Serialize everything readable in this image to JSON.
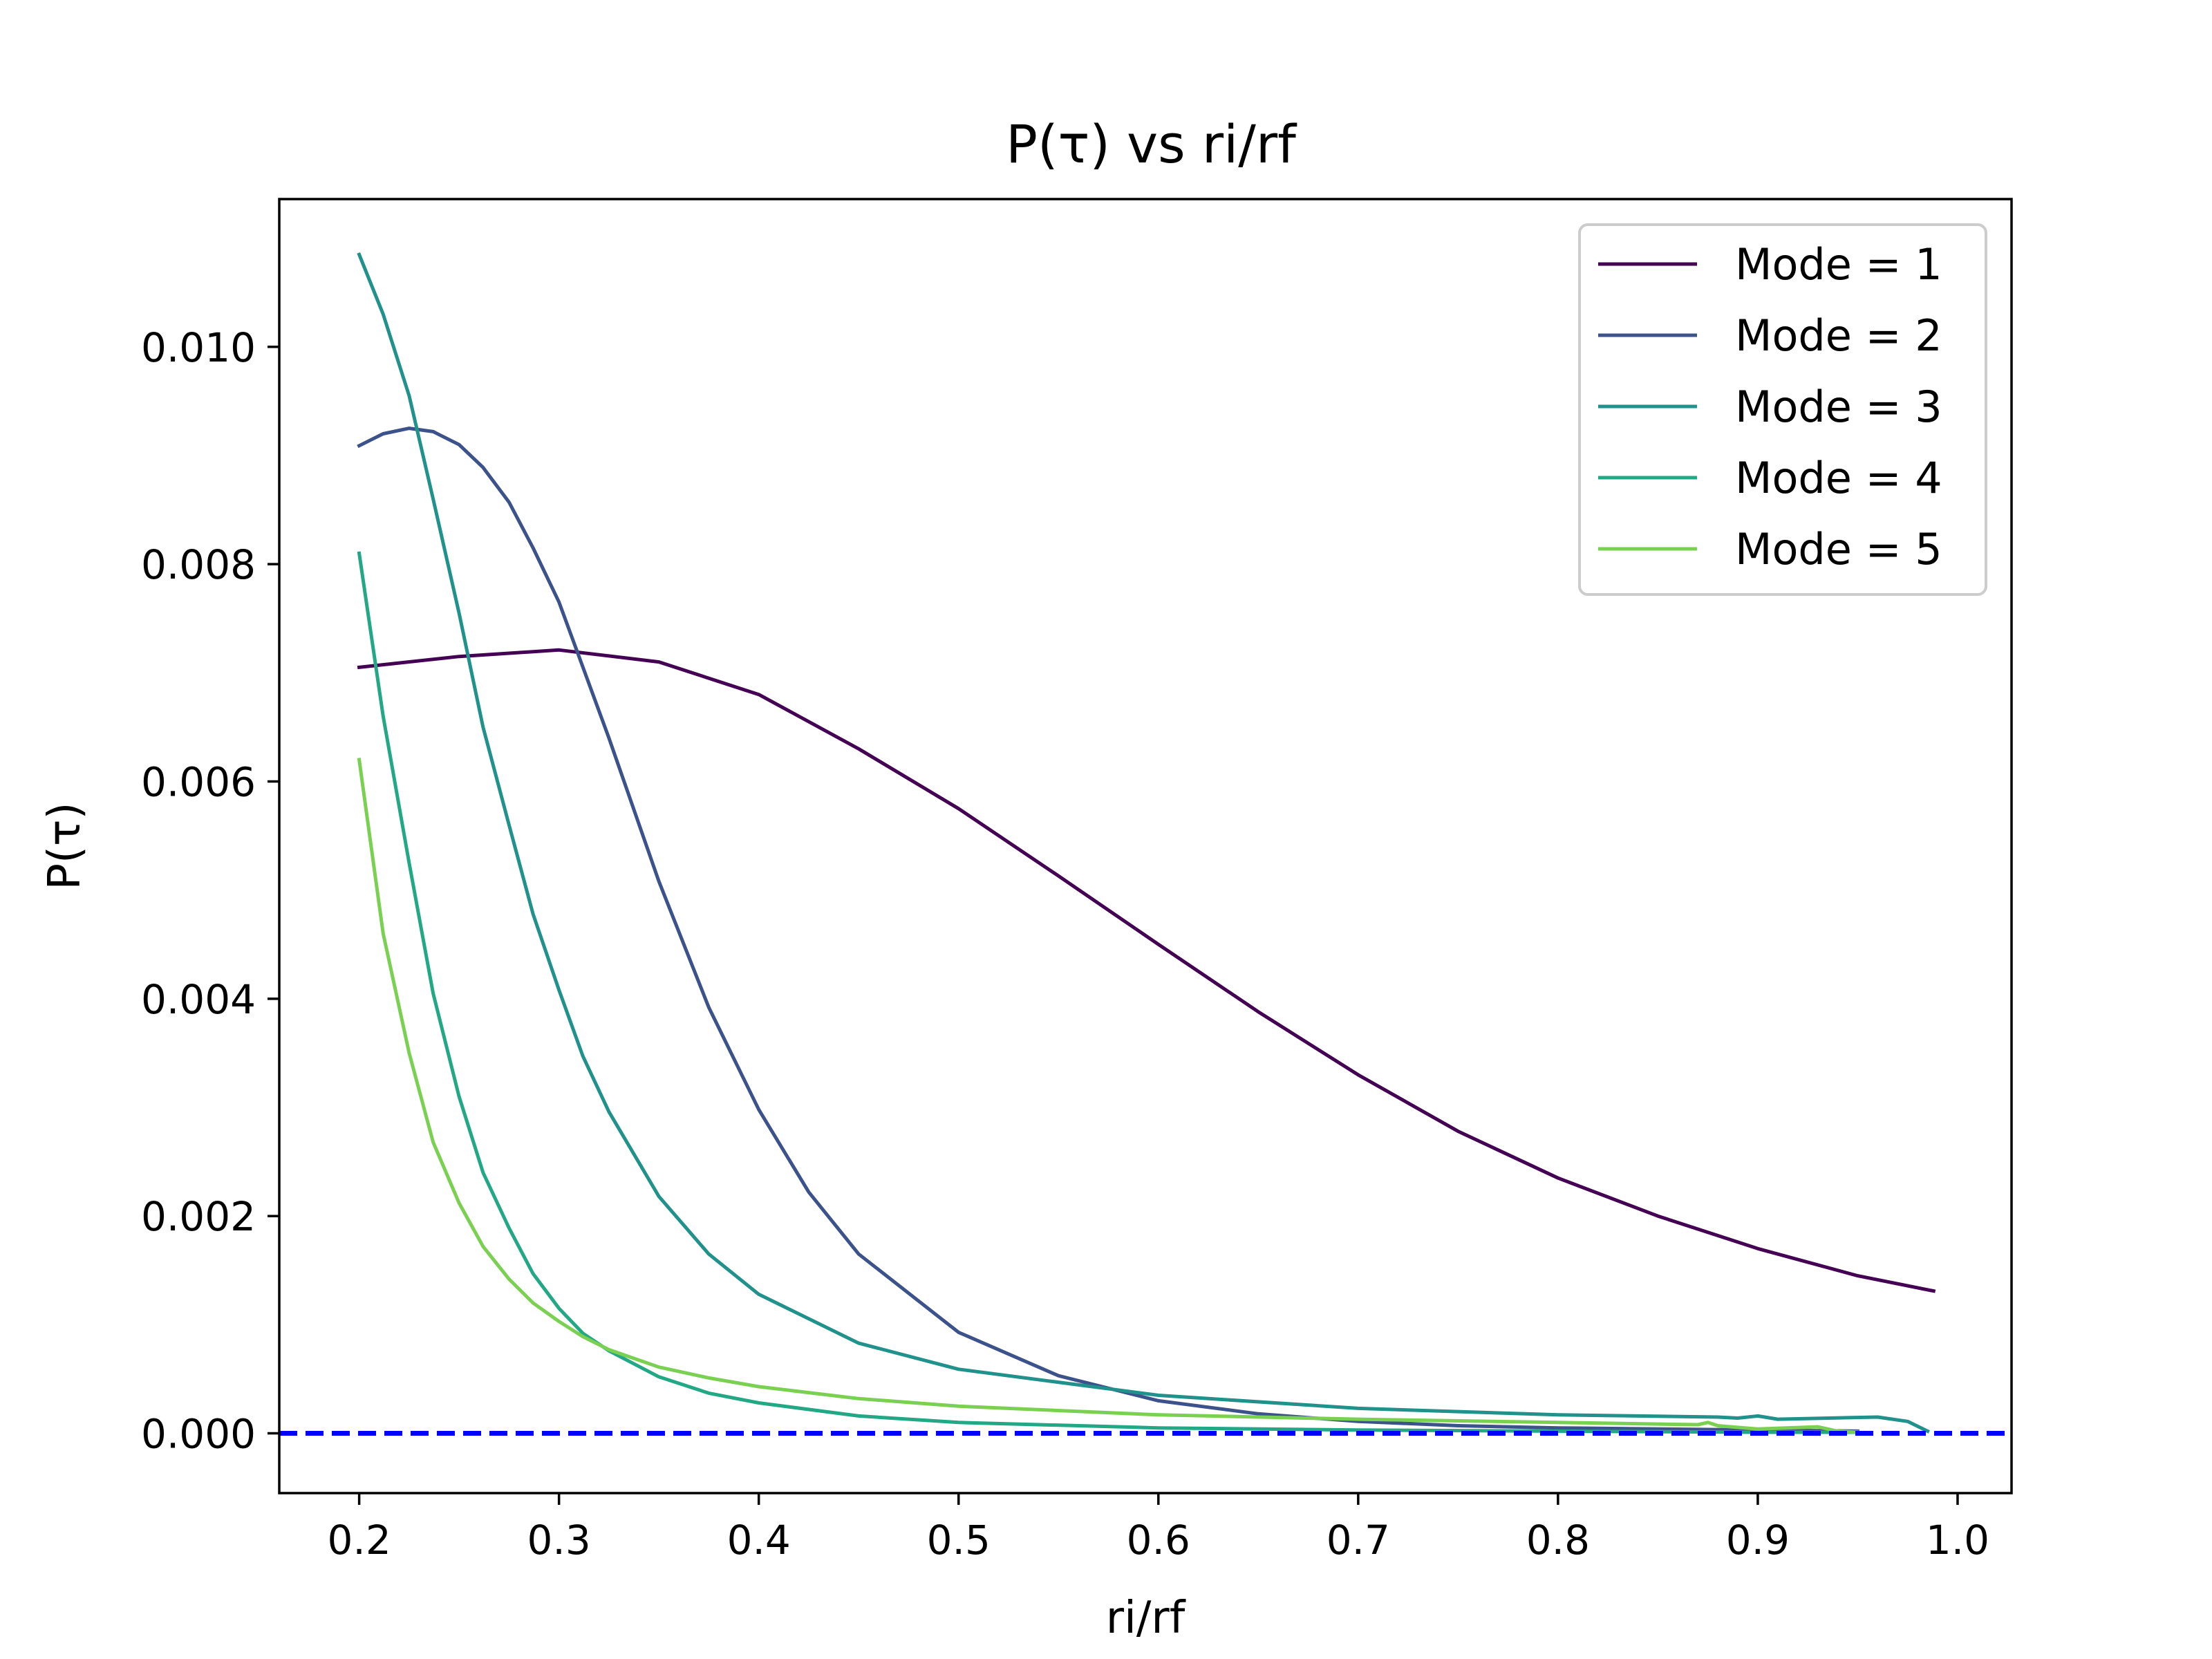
{
  "chart_data": {
    "type": "line",
    "title": "P(τ) vs ri/rf",
    "xlabel": "ri/rf",
    "ylabel": "P(τ)",
    "xlim": [
      0.16,
      1.027
    ],
    "ylim": [
      -0.00055,
      0.01136
    ],
    "xticks": [
      0.2,
      0.3,
      0.4,
      0.5,
      0.6,
      0.7,
      0.8,
      0.9,
      1.0
    ],
    "xtick_labels": [
      "0.2",
      "0.3",
      "0.4",
      "0.5",
      "0.6",
      "0.7",
      "0.8",
      "0.9",
      "1.0"
    ],
    "yticks": [
      0.0,
      0.002,
      0.004,
      0.006,
      0.008,
      0.01
    ],
    "ytick_labels": [
      "0.000",
      "0.002",
      "0.004",
      "0.006",
      "0.008",
      "0.010"
    ],
    "grid": false,
    "legend_position": "top-right",
    "reference_line": {
      "y": 0.0,
      "style": "dashed",
      "color": "#0000ff"
    },
    "series": [
      {
        "name": "Mode = 1",
        "color": "#440154",
        "x": [
          0.2,
          0.25,
          0.3,
          0.35,
          0.4,
          0.45,
          0.5,
          0.55,
          0.6,
          0.65,
          0.7,
          0.75,
          0.8,
          0.85,
          0.9,
          0.95,
          0.988
        ],
        "y": [
          0.00705,
          0.00715,
          0.00721,
          0.0071,
          0.0068,
          0.0063,
          0.00575,
          0.00513,
          0.0045,
          0.00388,
          0.0033,
          0.00278,
          0.00235,
          0.002,
          0.0017,
          0.00145,
          0.00131
        ]
      },
      {
        "name": "Mode = 2",
        "color": "#3b528b",
        "x": [
          0.2,
          0.212,
          0.225,
          0.237,
          0.25,
          0.262,
          0.275,
          0.287,
          0.3,
          0.325,
          0.35,
          0.375,
          0.4,
          0.425,
          0.45,
          0.5,
          0.55,
          0.6,
          0.65,
          0.7,
          0.75,
          0.8,
          0.9,
          0.95
        ],
        "y": [
          0.00909,
          0.0092,
          0.00925,
          0.00922,
          0.0091,
          0.00889,
          0.00857,
          0.00815,
          0.00765,
          0.0064,
          0.00508,
          0.00392,
          0.00298,
          0.00222,
          0.00165,
          0.00093,
          0.00053,
          0.0003,
          0.00018,
          0.00011,
          7e-05,
          5e-05,
          3e-05,
          2e-05
        ]
      },
      {
        "name": "Mode = 3",
        "color": "#21918c",
        "x": [
          0.2,
          0.212,
          0.225,
          0.237,
          0.25,
          0.262,
          0.275,
          0.287,
          0.3,
          0.312,
          0.325,
          0.35,
          0.375,
          0.4,
          0.45,
          0.5,
          0.6,
          0.7,
          0.8,
          0.88,
          0.89,
          0.9,
          0.91,
          0.96,
          0.975,
          0.985
        ],
        "y": [
          0.01085,
          0.0103,
          0.00955,
          0.0086,
          0.00755,
          0.0065,
          0.0056,
          0.00478,
          0.00408,
          0.00347,
          0.00296,
          0.00218,
          0.00165,
          0.00128,
          0.00083,
          0.00059,
          0.00035,
          0.00023,
          0.00017,
          0.00015,
          0.00014,
          0.00016,
          0.00013,
          0.00015,
          0.00011,
          2e-05
        ]
      },
      {
        "name": "Mode = 4",
        "color": "#22a884",
        "x": [
          0.2,
          0.212,
          0.225,
          0.237,
          0.25,
          0.262,
          0.275,
          0.287,
          0.3,
          0.312,
          0.325,
          0.35,
          0.375,
          0.4,
          0.45,
          0.5,
          0.6,
          0.7,
          0.8,
          0.9,
          0.95
        ],
        "y": [
          0.0081,
          0.0066,
          0.00525,
          0.00405,
          0.0031,
          0.0024,
          0.00189,
          0.00147,
          0.00115,
          0.00092,
          0.00076,
          0.00052,
          0.00037,
          0.00028,
          0.00016,
          0.0001,
          5e-05,
          3e-05,
          2e-05,
          1e-05,
          1e-05
        ]
      },
      {
        "name": "Mode = 5",
        "color": "#7ad151",
        "x": [
          0.2,
          0.212,
          0.225,
          0.237,
          0.25,
          0.262,
          0.275,
          0.287,
          0.3,
          0.312,
          0.325,
          0.35,
          0.375,
          0.4,
          0.45,
          0.5,
          0.6,
          0.7,
          0.8,
          0.87,
          0.875,
          0.88,
          0.9,
          0.93,
          0.94,
          0.95
        ],
        "y": [
          0.0062,
          0.0046,
          0.0035,
          0.00268,
          0.00212,
          0.00172,
          0.00142,
          0.0012,
          0.00103,
          0.00089,
          0.00077,
          0.00061,
          0.00051,
          0.00043,
          0.00032,
          0.00025,
          0.00017,
          0.00013,
          0.0001,
          8e-05,
          0.0001,
          7e-05,
          4e-05,
          6e-05,
          2e-05,
          1e-05
        ]
      }
    ]
  }
}
